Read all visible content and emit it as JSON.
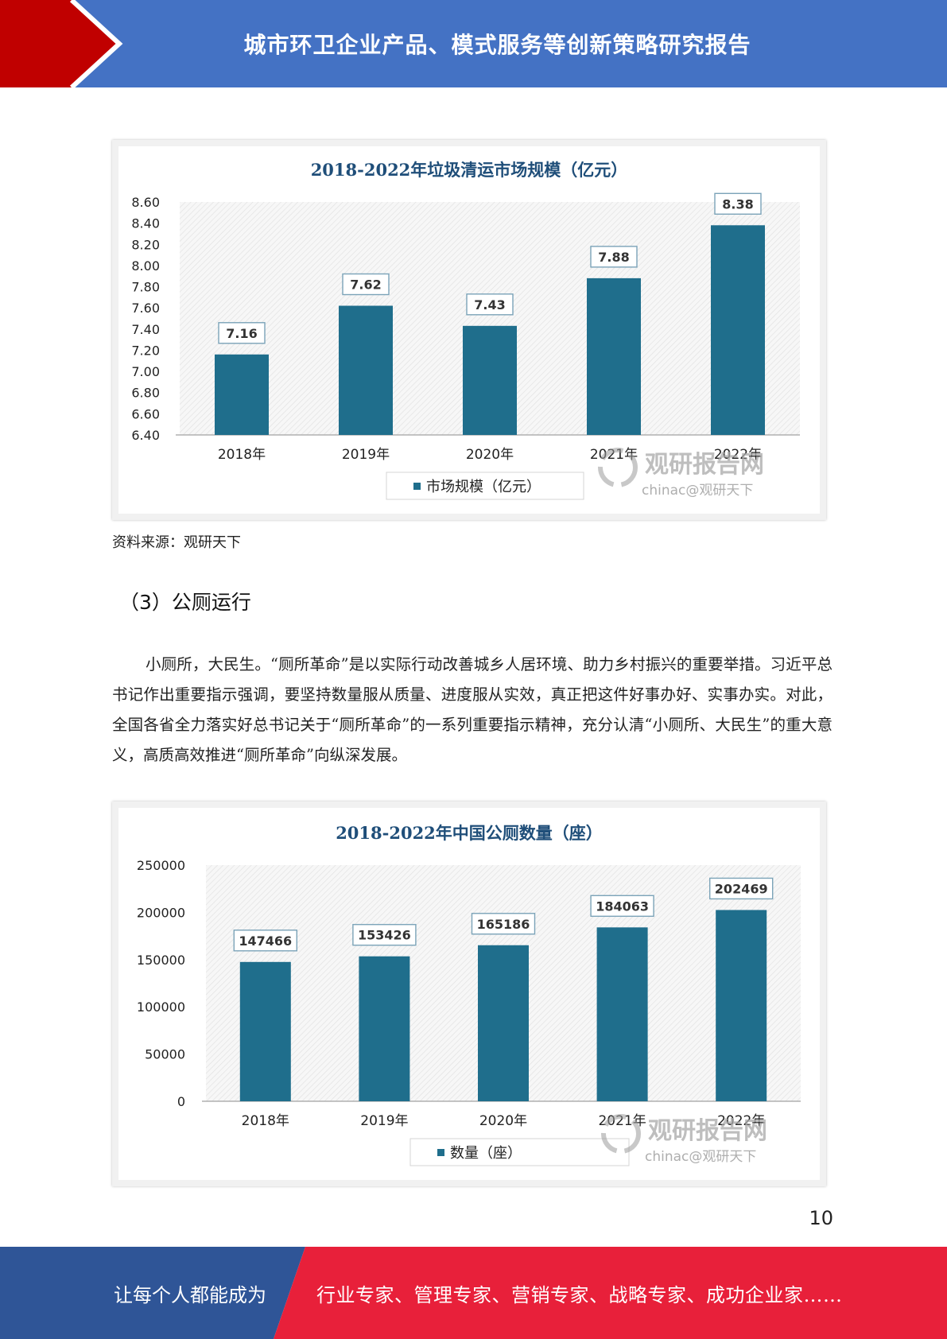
{
  "header": {
    "title": "城市环卫企业产品、模式服务等创新策略研究报告",
    "colors": {
      "band": "#4472C4",
      "chevron": "#C00000"
    }
  },
  "charts": {
    "waste_collection": {
      "watermark": {
        "brand": "观研报告网",
        "sub": "chinac@观研天下"
      }
    },
    "public_toilets": {
      "watermark": {
        "brand": "观研报告网",
        "sub": "chinac@观研天下"
      }
    }
  },
  "chart_data": [
    {
      "type": "bar",
      "title": "2018-2022年垃圾清运市场规模（亿元）",
      "categories": [
        "2018年",
        "2019年",
        "2020年",
        "2021年",
        "2022年"
      ],
      "series": [
        {
          "name": "市场规模（亿元）",
          "values": [
            7.16,
            7.62,
            7.43,
            7.88,
            8.38
          ]
        }
      ],
      "data_labels": [
        "7.16",
        "7.62",
        "7.43",
        "7.88",
        "8.38"
      ],
      "yticks": [
        "6.40",
        "6.60",
        "6.80",
        "7.00",
        "7.20",
        "7.40",
        "7.60",
        "7.80",
        "8.00",
        "8.20",
        "8.40",
        "8.60"
      ],
      "ylim": [
        6.4,
        8.6
      ],
      "xlabel": "",
      "ylabel": "",
      "legend": "bottom",
      "grid": false,
      "bar_color": "#1F6E8C",
      "title_color": "#1F4E79"
    },
    {
      "type": "bar",
      "title": "2018-2022年中国公厕数量（座）",
      "categories": [
        "2018年",
        "2019年",
        "2020年",
        "2021年",
        "2022年"
      ],
      "series": [
        {
          "name": "数量（座）",
          "values": [
            147466,
            153426,
            165186,
            184063,
            202469
          ]
        }
      ],
      "data_labels": [
        "147466",
        "153426",
        "165186",
        "184063",
        "202469"
      ],
      "yticks": [
        "0",
        "50000",
        "100000",
        "150000",
        "200000",
        "250000"
      ],
      "ylim": [
        0,
        250000
      ],
      "xlabel": "",
      "ylabel": "",
      "legend": "bottom",
      "grid": false,
      "bar_color": "#1F6E8C",
      "title_color": "#1F4E79"
    }
  ],
  "source_note": "资料来源：观研天下",
  "section": {
    "heading": "（3）公厕运行",
    "paragraph": "小厕所，大民生。“厕所革命”是以实际行动改善城乡人居环境、助力乡村振兴的重要举措。习近平总书记作出重要指示强调，要坚持数量服从质量、进度服从实效，真正把这件好事办好、实事办实。对此，全国各省全力落实好总书记关于“厕所革命”的一系列重要指示精神，充分认清“小厕所、大民生”的重大意义，高质高效推进“厕所革命”向纵深发展。"
  },
  "page_number": "10",
  "footer": {
    "left": "让每个人都能成为",
    "right": "行业专家、管理专家、营销专家、战略专家、成功企业家……",
    "colors": {
      "left": "#2F5597",
      "right": "#E8203A"
    }
  }
}
